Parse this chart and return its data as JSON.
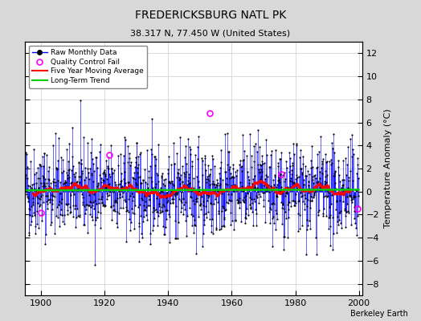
{
  "title": "FREDERICKSBURG NATL PK",
  "subtitle": "38.317 N, 77.450 W (United States)",
  "ylabel": "Temperature Anomaly (°C)",
  "credit": "Berkeley Earth",
  "xlim": [
    1895,
    2001
  ],
  "ylim": [
    -9,
    13
  ],
  "yticks": [
    -8,
    -6,
    -4,
    -2,
    0,
    2,
    4,
    6,
    8,
    10,
    12
  ],
  "xticks": [
    1900,
    1920,
    1940,
    1960,
    1980,
    2000
  ],
  "bar_color": "#0000ff",
  "dot_color": "#000000",
  "ma_color": "#ff0000",
  "trend_color": "#00cc00",
  "qc_color": "#ff00ff",
  "background_color": "#d8d8d8",
  "plot_bg_color": "#ffffff",
  "seed": 42,
  "n_months": 1260,
  "start_year": 1895
}
